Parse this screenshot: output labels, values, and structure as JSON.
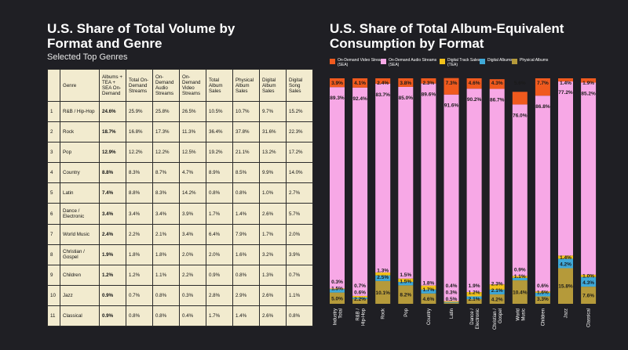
{
  "left": {
    "title": "U.S. Share of Total Volume by Format and Genre",
    "subtitle": "Selected Top Genres",
    "columns": [
      "",
      "Genre",
      "Albums + TEA + SEA On-Demand",
      "Total On-Demand Streams",
      "On-Demand Audio Streams",
      "On-Demand Video Streams",
      "Total Album Sales",
      "Physical Album Sales",
      "Digital Album Sales",
      "Digital Song Sales"
    ],
    "rows": [
      [
        "1",
        "R&B / Hip-Hop",
        "24.6%",
        "25.9%",
        "25.8%",
        "26.5%",
        "10.5%",
        "10.7%",
        "9.7%",
        "15.2%"
      ],
      [
        "2",
        "Rock",
        "18.7%",
        "16.8%",
        "17.3%",
        "11.3%",
        "36.4%",
        "37.8%",
        "31.6%",
        "22.3%"
      ],
      [
        "3",
        "Pop",
        "12.9%",
        "12.2%",
        "12.2%",
        "12.5%",
        "19.2%",
        "21.1%",
        "13.2%",
        "17.2%"
      ],
      [
        "4",
        "Country",
        "8.8%",
        "8.3%",
        "8.7%",
        "4.7%",
        "8.9%",
        "8.5%",
        "9.9%",
        "14.0%"
      ],
      [
        "5",
        "Latin",
        "7.4%",
        "8.8%",
        "8.3%",
        "14.2%",
        "0.8%",
        "0.8%",
        "1.0%",
        "2.7%"
      ],
      [
        "6",
        "Dance / Electronic",
        "3.4%",
        "3.4%",
        "3.4%",
        "3.9%",
        "1.7%",
        "1.4%",
        "2.6%",
        "5.7%"
      ],
      [
        "7",
        "World Music",
        "2.4%",
        "2.2%",
        "2.1%",
        "3.4%",
        "6.4%",
        "7.9%",
        "1.7%",
        "2.0%"
      ],
      [
        "8",
        "Christian / Gospel",
        "1.9%",
        "1.8%",
        "1.8%",
        "2.0%",
        "2.0%",
        "1.6%",
        "3.2%",
        "3.9%"
      ],
      [
        "9",
        "Children",
        "1.2%",
        "1.2%",
        "1.1%",
        "2.2%",
        "0.9%",
        "0.8%",
        "1.3%",
        "0.7%"
      ],
      [
        "10",
        "Jazz",
        "0.9%",
        "0.7%",
        "0.8%",
        "0.3%",
        "2.8%",
        "2.9%",
        "2.6%",
        "1.1%"
      ],
      [
        "11",
        "Classical",
        "0.9%",
        "0.8%",
        "0.8%",
        "0.4%",
        "1.7%",
        "1.4%",
        "2.6%",
        "0.8%"
      ]
    ]
  },
  "chart_data": {
    "type": "bar",
    "stacked": true,
    "title": "U.S. Share of Total Album-Equivalent Consumption by Format",
    "ylim": [
      0,
      100
    ],
    "legend_position": "top",
    "categories": [
      "Industry Total",
      "R&B / Hip-Hop",
      "Rock",
      "Pop",
      "Country",
      "Latin",
      "Dance / Electronic",
      "Christian / Gospel",
      "World Music",
      "Children",
      "Jazz",
      "Classical"
    ],
    "series": [
      {
        "name": "Physical Albums",
        "color": "#b59a3a",
        "values": [
          5.0,
          2.2,
          10.1,
          8.2,
          4.6,
          0.5,
          2.1,
          4.2,
          10.4,
          3.3,
          15.8,
          7.6
        ],
        "labels": [
          "5.0%",
          "2.2%",
          "10.1%",
          "8.2%",
          "4.6%",
          "0.5%",
          "2.1%",
          "4.2%",
          "10.4%",
          "3.3%",
          "15.8%",
          "7.6%"
        ]
      },
      {
        "name": "Digital Albums",
        "color": "#3fa9d8",
        "values": [
          1.5,
          0.6,
          2.5,
          1.5,
          1.7,
          0.3,
          1.2,
          2.1,
          1.1,
          1.6,
          4.2,
          4.3
        ],
        "labels": [
          "1.5%",
          "0.6%",
          "2.5%",
          "1.5%",
          "1.7%",
          "0.3%",
          "1.2%",
          "2.1%",
          "1.1%",
          "1.6%",
          "4.2%",
          "4.3%"
        ]
      },
      {
        "name": "Digital Track Sales (TEA)",
        "color": "#f2c21b",
        "values": [
          0.3,
          0.7,
          1.3,
          1.5,
          1.8,
          0.4,
          1.9,
          2.3,
          0.9,
          0.6,
          1.4,
          1.0
        ],
        "labels": [
          "0.3%",
          "0.7%",
          "1.3%",
          "1.5%",
          "1.8%",
          "0.4%",
          "1.9%",
          "2.3%",
          "0.9%",
          "0.6%",
          "1.4%",
          "1.0%"
        ]
      },
      {
        "name": "On-Demand Audio Streams (SEA)",
        "color": "#f7a8e6",
        "values": [
          89.3,
          92.4,
          83.7,
          85.0,
          89.6,
          91.6,
          90.2,
          86.7,
          76.0,
          86.8,
          77.2,
          85.2
        ],
        "labels": [
          "89.3%",
          "92.4%",
          "83.7%",
          "85.0%",
          "89.6%",
          "91.6%",
          "90.2%",
          "86.7%",
          "76.0%",
          "86.8%",
          "77.2%",
          "85.2%"
        ]
      },
      {
        "name": "On-Demand Video Streams (SEA)",
        "color": "#f05a1e",
        "values": [
          3.9,
          4.1,
          2.4,
          3.8,
          2.3,
          7.3,
          4.6,
          4.3,
          5.6,
          7.7,
          1.4,
          1.9
        ],
        "labels": [
          "3.9%",
          "4.1%",
          "2.4%",
          "3.8%",
          "2.3%",
          "7.3%",
          "4.6%",
          "4.3%",
          "5.6%",
          "7.7%",
          "1.4%",
          "1.9%"
        ]
      }
    ],
    "legend_order": [
      "On-Demand Video Streams (SEA)",
      "On-Demand Audio Streams (SEA)",
      "Digital Track Sales (TEA)",
      "Digital Albums",
      "Physical Albums"
    ]
  }
}
